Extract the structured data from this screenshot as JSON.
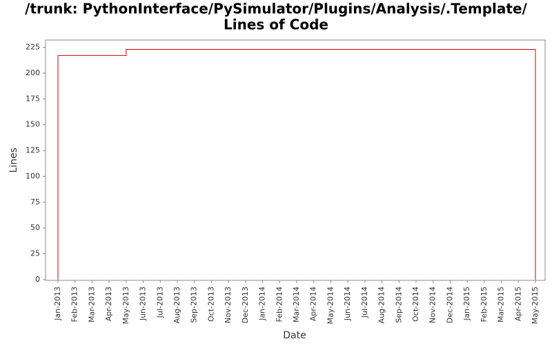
{
  "chart_data": {
    "type": "step-line",
    "title": [
      "/trunk: PythonInterface/PySimulator/Plugins/Analysis/.Template/",
      "Lines of Code"
    ],
    "x_label": "Date",
    "y_label": "Lines",
    "categories": [
      "Jan-2013",
      "Feb-2013",
      "Mar-2013",
      "Apr-2013",
      "May-2013",
      "Jun-2013",
      "Jul-2013",
      "Aug-2013",
      "Sep-2013",
      "Oct-2013",
      "Nov-2013",
      "Dec-2013",
      "Jan-2014",
      "Feb-2014",
      "Mar-2014",
      "Apr-2014",
      "May-2014",
      "Jun-2014",
      "Jul-2014",
      "Aug-2014",
      "Sep-2014",
      "Oct-2014",
      "Nov-2014",
      "Dec-2014",
      "Jan-2015",
      "Feb-2015",
      "Mar-2015",
      "Apr-2015",
      "May-2015"
    ],
    "series": [
      {
        "name": "Lines",
        "color": "#cc0000",
        "x": [
          "Jan-2013",
          "Jan-2013",
          "May-2013",
          "May-2013",
          "May-2015",
          "May-2015"
        ],
        "values": [
          0,
          217,
          217,
          223,
          223,
          0
        ]
      }
    ],
    "ylim": [
      0,
      232
    ],
    "yticks": [
      0,
      25,
      50,
      75,
      100,
      125,
      150,
      175,
      200,
      225
    ],
    "grid": false
  }
}
